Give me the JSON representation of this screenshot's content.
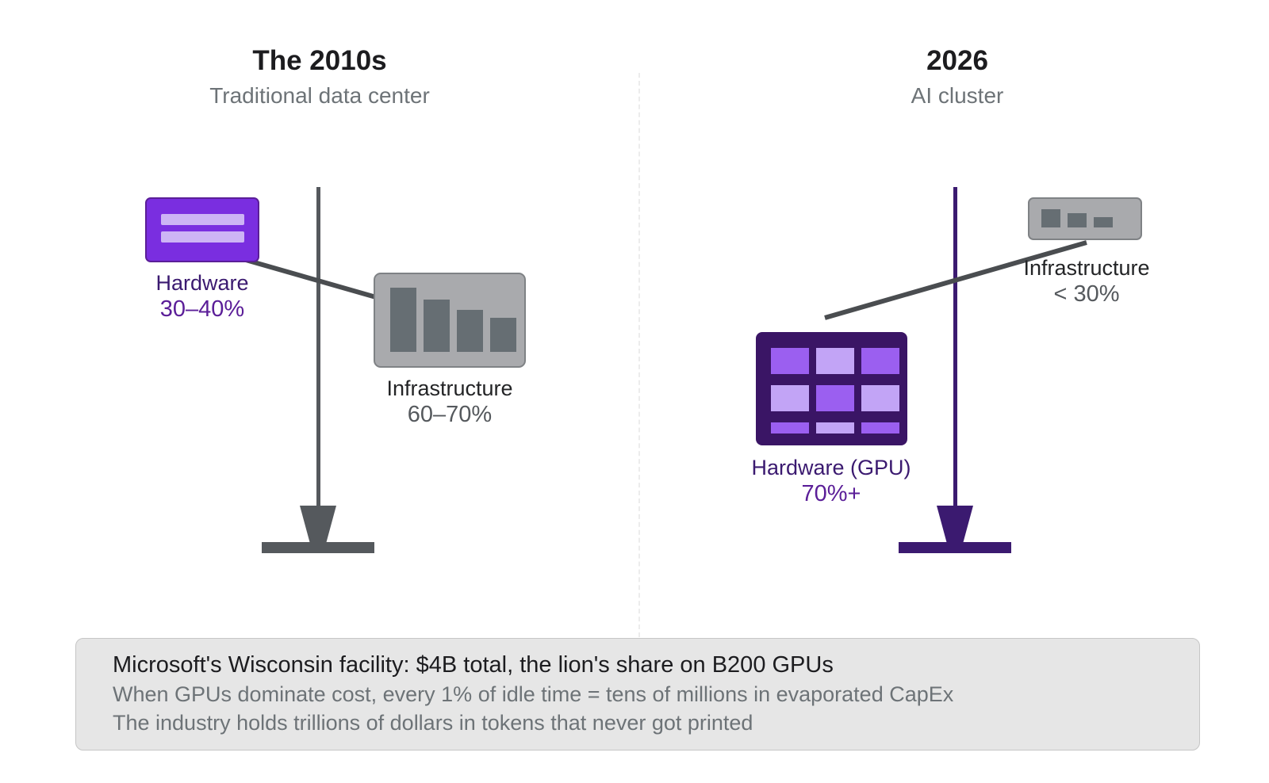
{
  "left_panel": {
    "era": "The 2010s",
    "subtitle": "Traditional data center",
    "hardware_label": "Hardware",
    "hardware_share": "30–40%",
    "infrastructure_label": "Infrastructure",
    "infrastructure_share": "60–70%"
  },
  "right_panel": {
    "era": "2026",
    "subtitle": "AI cluster",
    "hardware_label": "Hardware (GPU)",
    "hardware_share": "70%+",
    "infrastructure_label": "Infrastructure",
    "infrastructure_share": "< 30%"
  },
  "callout": {
    "headline": "Microsoft's Wisconsin facility: $4B total, the lion's share on B200 GPUs",
    "line1": "When GPUs dominate cost, every 1% of idle time = tens of millions in evaporated CapEx",
    "line2": "The industry holds trillions of dollars in tokens that never got printed"
  },
  "colors": {
    "purple_accent": "#7a2ee0",
    "purple_dark": "#3b1a70",
    "gray_box": "#a9aaad",
    "gray_bar": "#666e73",
    "stand_gray": "#55595d"
  },
  "icons": [
    "server-icon",
    "bar-chart-icon",
    "gpu-grid-icon"
  ]
}
